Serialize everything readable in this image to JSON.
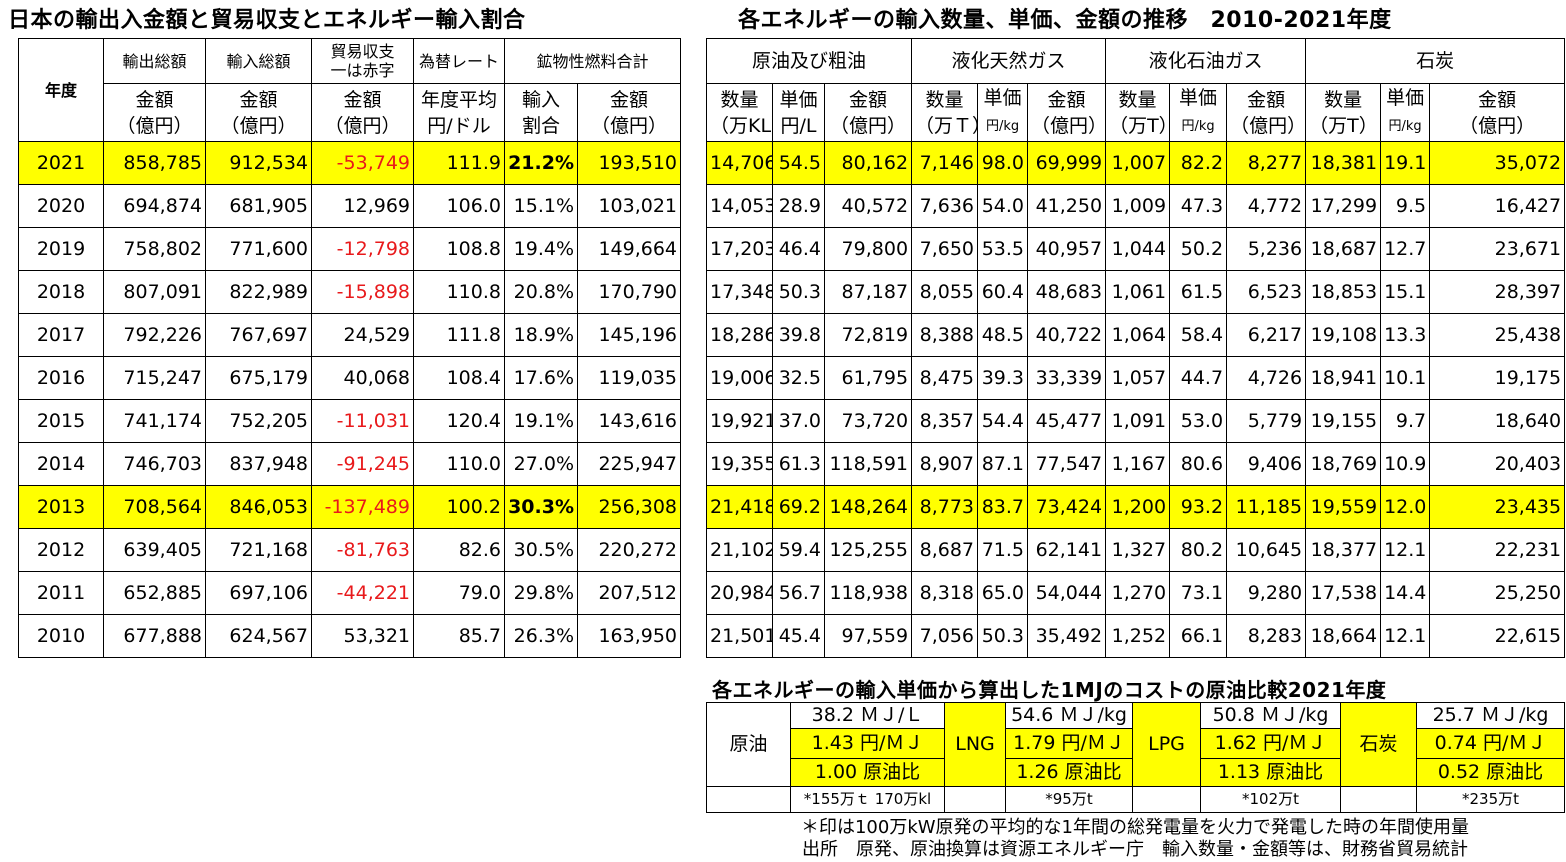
{
  "left_title": "日本の輸出入金額と貿易収支とエネルギー輸入割合",
  "right_title": "各エネルギーの輸入数量、単価、金額の推移　2010-2021年度",
  "cost_title": "各エネルギーの輸入単価から算出した1MJのコストの原油比較2021年度",
  "left_table": {
    "year_header": "年度",
    "col_headers": [
      "輸出総額",
      "輸入総額",
      "貿易収支\n一は赤字",
      "為替レート",
      "鉱物性燃料合計"
    ],
    "sub_headers": [
      "金額\n（億円）",
      "金額\n（億円）",
      "金額\n（億円）",
      "年度平均\n円/ドル",
      "輸入\n割合",
      "金額\n（億円）"
    ],
    "rows": [
      {
        "year": "2021",
        "export": "858,785",
        "import": "912,534",
        "balance": "-53,749",
        "rate": "111.9",
        "ratio": "21.2%",
        "fuel": "193,510"
      },
      {
        "year": "2020",
        "export": "694,874",
        "import": "681,905",
        "balance": "12,969",
        "rate": "106.0",
        "ratio": "15.1%",
        "fuel": "103,021"
      },
      {
        "year": "2019",
        "export": "758,802",
        "import": "771,600",
        "balance": "-12,798",
        "rate": "108.8",
        "ratio": "19.4%",
        "fuel": "149,664"
      },
      {
        "year": "2018",
        "export": "807,091",
        "import": "822,989",
        "balance": "-15,898",
        "rate": "110.8",
        "ratio": "20.8%",
        "fuel": "170,790"
      },
      {
        "year": "2017",
        "export": "792,226",
        "import": "767,697",
        "balance": "24,529",
        "rate": "111.8",
        "ratio": "18.9%",
        "fuel": "145,196"
      },
      {
        "year": "2016",
        "export": "715,247",
        "import": "675,179",
        "balance": "40,068",
        "rate": "108.4",
        "ratio": "17.6%",
        "fuel": "119,035"
      },
      {
        "year": "2015",
        "export": "741,174",
        "import": "752,205",
        "balance": "-11,031",
        "rate": "120.4",
        "ratio": "19.1%",
        "fuel": "143,616"
      },
      {
        "year": "2014",
        "export": "746,703",
        "import": "837,948",
        "balance": "-91,245",
        "rate": "110.0",
        "ratio": "27.0%",
        "fuel": "225,947"
      },
      {
        "year": "2013",
        "export": "708,564",
        "import": "846,053",
        "balance": "-137,489",
        "rate": "100.2",
        "ratio": "30.3%",
        "fuel": "256,308"
      },
      {
        "year": "2012",
        "export": "639,405",
        "import": "721,168",
        "balance": "-81,763",
        "rate": "82.6",
        "ratio": "30.5%",
        "fuel": "220,272"
      },
      {
        "year": "2011",
        "export": "652,885",
        "import": "697,106",
        "balance": "-44,221",
        "rate": "79.0",
        "ratio": "29.8%",
        "fuel": "207,512"
      },
      {
        "year": "2010",
        "export": "677,888",
        "import": "624,567",
        "balance": "53,321",
        "rate": "85.7",
        "ratio": "26.3%",
        "fuel": "163,950"
      }
    ]
  },
  "right_table": {
    "groups": [
      "原油及び粗油",
      "液化天然ガス",
      "液化石油ガス",
      "石炭"
    ],
    "sub_headers": [
      [
        "数量\n（万KL）",
        "単価\n円/L",
        "金額\n（億円）"
      ],
      [
        "数量\n（万Ｔ）",
        "単価\n円/kg",
        "金額\n（億円）"
      ],
      [
        "数量\n（万T）",
        "単価\n円/kg",
        "金額\n（億円）"
      ],
      [
        "数量\n（万T）",
        "単価\n円/kg",
        "金額\n（億円）"
      ]
    ],
    "rows": [
      [
        "14,706",
        "54.5",
        "80,162",
        "7,146",
        "98.0",
        "69,999",
        "1,007",
        "82.2",
        "8,277",
        "18,381",
        "19.1",
        "35,072"
      ],
      [
        "14,053",
        "28.9",
        "40,572",
        "7,636",
        "54.0",
        "41,250",
        "1,009",
        "47.3",
        "4,772",
        "17,299",
        "9.5",
        "16,427"
      ],
      [
        "17,203",
        "46.4",
        "79,800",
        "7,650",
        "53.5",
        "40,957",
        "1,044",
        "50.2",
        "5,236",
        "18,687",
        "12.7",
        "23,671"
      ],
      [
        "17,348",
        "50.3",
        "87,187",
        "8,055",
        "60.4",
        "48,683",
        "1,061",
        "61.5",
        "6,523",
        "18,853",
        "15.1",
        "28,397"
      ],
      [
        "18,286",
        "39.8",
        "72,819",
        "8,388",
        "48.5",
        "40,722",
        "1,064",
        "58.4",
        "6,217",
        "19,108",
        "13.3",
        "25,438"
      ],
      [
        "19,006",
        "32.5",
        "61,795",
        "8,475",
        "39.3",
        "33,339",
        "1,057",
        "44.7",
        "4,726",
        "18,941",
        "10.1",
        "19,175"
      ],
      [
        "19,921",
        "37.0",
        "73,720",
        "8,357",
        "54.4",
        "45,477",
        "1,091",
        "53.0",
        "5,779",
        "19,155",
        "9.7",
        "18,640"
      ],
      [
        "19,355",
        "61.3",
        "118,591",
        "8,907",
        "87.1",
        "77,547",
        "1,167",
        "80.6",
        "9,406",
        "18,769",
        "10.9",
        "20,403"
      ],
      [
        "21,418",
        "69.2",
        "148,264",
        "8,773",
        "83.7",
        "73,424",
        "1,200",
        "93.2",
        "11,185",
        "19,559",
        "12.0",
        "23,435"
      ],
      [
        "21,102",
        "59.4",
        "125,255",
        "8,687",
        "71.5",
        "62,141",
        "1,327",
        "80.2",
        "10,645",
        "18,377",
        "12.1",
        "22,231"
      ],
      [
        "20,984",
        "56.7",
        "118,938",
        "8,318",
        "65.0",
        "54,044",
        "1,270",
        "73.1",
        "9,280",
        "17,538",
        "14.4",
        "25,250"
      ],
      [
        "21,501",
        "45.4",
        "97,559",
        "7,056",
        "50.3",
        "35,492",
        "1,252",
        "66.1",
        "8,283",
        "18,664",
        "12.1",
        "22,615"
      ]
    ]
  },
  "cost_table": {
    "items": [
      {
        "name": "原油",
        "energy": "38.2 ＭＪ/Ｌ",
        "cost": "1.43 円/ＭＪ",
        "ratio": "1.00 原油比",
        "note": "*155万ｔ 170万kl"
      },
      {
        "name": "LNG",
        "energy": "54.6 ＭＪ/kg",
        "cost": "1.79 円/ＭＪ",
        "ratio": "1.26 原油比",
        "note": "*95万t"
      },
      {
        "name": "LPG",
        "energy": "50.8 ＭＪ/kg",
        "cost": "1.62 円/ＭＪ",
        "ratio": "1.13 原油比",
        "note": "*102万t"
      },
      {
        "name": "石炭",
        "energy": "25.7 ＭＪ/kg",
        "cost": "0.74 円/ＭＪ",
        "ratio": "0.52 原油比",
        "note": "*235万t"
      }
    ],
    "footnote": "＊印は100万kW原発の平均的な1年間の総発電量を火力で発電した時の年間使用量",
    "source": "出所　原発、原油換算は資源エネルギー庁　輸入数量・金額等は、財務省貿易統計"
  },
  "colors": {
    "highlight": "#ffff00",
    "negative": "#e8191b"
  }
}
